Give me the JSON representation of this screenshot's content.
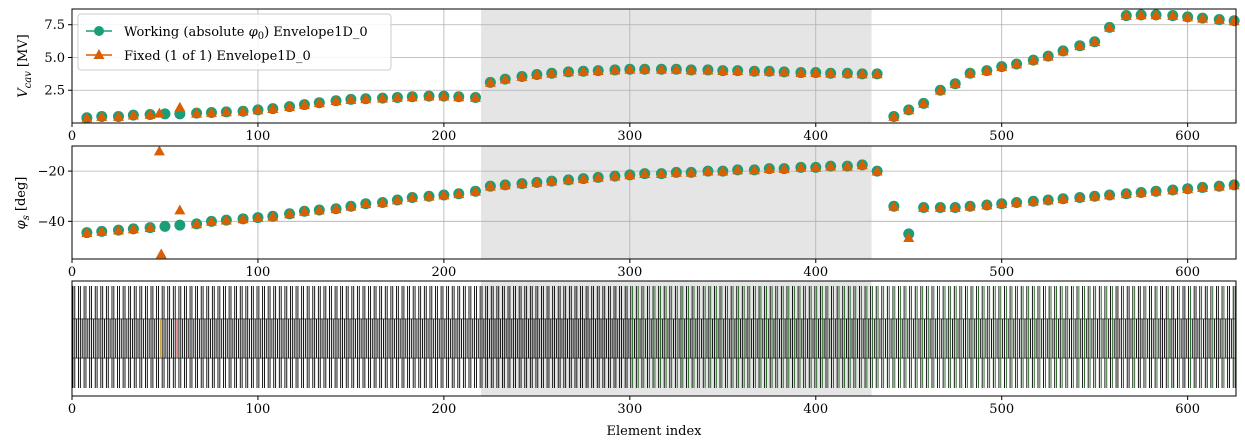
{
  "chart_data": [
    {
      "type": "scatter",
      "name": "voltage-panel",
      "ylabel_main": "V",
      "ylabel_sub": "cav",
      "ylabel_unit": "[MV]",
      "xlim": [
        0,
        626
      ],
      "ylim": [
        0,
        8.7
      ],
      "xticks": [
        0,
        100,
        200,
        300,
        400,
        500,
        600
      ],
      "yticks": [
        2.5,
        5.0,
        7.5
      ],
      "grid": true,
      "legend": {
        "placement": "top-left",
        "entries": [
          {
            "label_pre": "Working (absolute ",
            "label_sym": "φ",
            "label_sub": "0",
            "label_post": ") Envelope1D_0",
            "color": "#1b9e77",
            "marker": "circle"
          },
          {
            "label_pre": "Fixed (1 of 1) Envelope1D_0",
            "label_sym": "",
            "label_sub": "",
            "label_post": "",
            "color": "#d95f02",
            "marker": "triangle"
          }
        ]
      },
      "shaded_region": [
        220,
        430
      ],
      "series": [
        {
          "name": "Working (absolute φ0) Envelope1D_0",
          "color": "#1b9e77",
          "marker": "circle",
          "x": [
            8,
            16,
            25,
            33,
            42,
            50,
            58,
            67,
            75,
            83,
            92,
            100,
            108,
            117,
            125,
            133,
            142,
            150,
            158,
            167,
            175,
            183,
            192,
            200,
            208,
            217,
            225,
            233,
            242,
            250,
            258,
            267,
            275,
            283,
            292,
            300,
            308,
            317,
            325,
            333,
            342,
            350,
            358,
            367,
            375,
            383,
            392,
            400,
            408,
            417,
            425,
            433,
            442,
            450,
            458,
            467,
            475,
            483,
            492,
            500,
            508,
            517,
            525,
            533,
            542,
            550,
            558,
            567,
            575,
            583,
            592,
            600,
            608,
            617,
            625
          ],
          "y": [
            0.4,
            0.5,
            0.5,
            0.6,
            0.65,
            0.7,
            0.7,
            0.75,
            0.8,
            0.85,
            0.9,
            1.0,
            1.1,
            1.25,
            1.4,
            1.55,
            1.7,
            1.8,
            1.85,
            1.9,
            1.95,
            2.0,
            2.05,
            2.05,
            2.0,
            1.95,
            3.1,
            3.35,
            3.55,
            3.7,
            3.8,
            3.9,
            3.95,
            4.0,
            4.05,
            4.1,
            4.1,
            4.1,
            4.1,
            4.05,
            4.05,
            4.0,
            4.0,
            3.95,
            3.95,
            3.9,
            3.85,
            3.85,
            3.8,
            3.8,
            3.75,
            3.75,
            0.5,
            1.0,
            1.5,
            2.5,
            3.0,
            3.8,
            4.0,
            4.3,
            4.5,
            4.8,
            5.1,
            5.5,
            5.9,
            6.2,
            7.3,
            8.2,
            8.25,
            8.25,
            8.2,
            8.1,
            8.0,
            7.9,
            7.8
          ]
        },
        {
          "name": "Fixed (1 of 1) Envelope1D_0",
          "color": "#d95f02",
          "marker": "triangle",
          "x": [
            8,
            16,
            25,
            33,
            42,
            47,
            58,
            67,
            75,
            83,
            92,
            100,
            108,
            117,
            125,
            133,
            142,
            150,
            158,
            167,
            175,
            183,
            192,
            200,
            208,
            217,
            225,
            233,
            242,
            250,
            258,
            267,
            275,
            283,
            292,
            300,
            308,
            317,
            325,
            333,
            342,
            350,
            358,
            367,
            375,
            383,
            392,
            400,
            408,
            417,
            425,
            433,
            442,
            450,
            458,
            467,
            475,
            483,
            492,
            500,
            508,
            517,
            525,
            533,
            542,
            550,
            558,
            567,
            575,
            583,
            592,
            600,
            608,
            617,
            625
          ],
          "y": [
            0.4,
            0.5,
            0.5,
            0.6,
            0.65,
            0.75,
            1.2,
            0.75,
            0.8,
            0.85,
            0.9,
            1.0,
            1.1,
            1.25,
            1.4,
            1.55,
            1.7,
            1.8,
            1.85,
            1.9,
            1.95,
            2.0,
            2.05,
            2.05,
            2.0,
            1.95,
            3.1,
            3.35,
            3.55,
            3.7,
            3.8,
            3.9,
            3.95,
            4.0,
            4.05,
            4.1,
            4.1,
            4.1,
            4.1,
            4.05,
            4.05,
            4.0,
            4.0,
            3.95,
            3.95,
            3.9,
            3.85,
            3.85,
            3.8,
            3.8,
            3.75,
            3.75,
            0.5,
            1.0,
            1.5,
            2.5,
            3.0,
            3.8,
            4.0,
            4.3,
            4.5,
            4.8,
            5.1,
            5.5,
            5.9,
            6.2,
            7.3,
            8.2,
            8.25,
            8.25,
            8.2,
            8.1,
            8.0,
            7.9,
            7.8
          ]
        }
      ]
    },
    {
      "type": "scatter",
      "name": "phase-panel",
      "ylabel_main": "φ",
      "ylabel_sub": "s",
      "ylabel_unit": "[deg]",
      "xlim": [
        0,
        626
      ],
      "ylim": [
        -55,
        -10
      ],
      "xticks": [
        0,
        100,
        200,
        300,
        400,
        500,
        600
      ],
      "yticks": [
        -40,
        -20
      ],
      "ytick_labels": [
        "−40",
        "−20"
      ],
      "grid": true,
      "shaded_region": [
        220,
        430
      ],
      "series": [
        {
          "name": "Working (absolute φ0) Envelope1D_0",
          "color": "#1b9e77",
          "marker": "circle",
          "x": [
            8,
            16,
            25,
            33,
            42,
            50,
            58,
            67,
            75,
            83,
            92,
            100,
            108,
            117,
            125,
            133,
            142,
            150,
            158,
            167,
            175,
            183,
            192,
            200,
            208,
            217,
            225,
            233,
            242,
            250,
            258,
            267,
            275,
            283,
            292,
            300,
            308,
            317,
            325,
            333,
            342,
            350,
            358,
            367,
            375,
            383,
            392,
            400,
            408,
            417,
            425,
            433,
            442,
            450,
            458,
            467,
            475,
            483,
            492,
            500,
            508,
            517,
            525,
            533,
            542,
            550,
            558,
            567,
            575,
            583,
            592,
            600,
            608,
            617,
            625
          ],
          "y": [
            -44.5,
            -44,
            -43.5,
            -43,
            -42.5,
            -42,
            -41.5,
            -41,
            -40,
            -39.5,
            -39,
            -38.5,
            -38,
            -37,
            -36,
            -35.5,
            -35,
            -34,
            -33,
            -32.5,
            -31.5,
            -30.5,
            -30,
            -29.5,
            -29,
            -28,
            -26,
            -25.5,
            -25,
            -24.5,
            -24,
            -23.5,
            -23,
            -22.5,
            -22,
            -21.5,
            -21,
            -21,
            -20.5,
            -20.5,
            -20,
            -20,
            -19.5,
            -19.5,
            -19,
            -19,
            -18.5,
            -18.5,
            -18,
            -18,
            -17.5,
            -20,
            -34,
            -45,
            -34.5,
            -34.5,
            -34.5,
            -34,
            -33.5,
            -33,
            -32.5,
            -32,
            -31.5,
            -31,
            -30.5,
            -30,
            -29.5,
            -29,
            -28.5,
            -28,
            -27.5,
            -27,
            -26.5,
            -26,
            -25.5
          ]
        },
        {
          "name": "Fixed (1 of 1) Envelope1D_0",
          "color": "#d95f02",
          "marker": "triangle",
          "x": [
            8,
            16,
            25,
            33,
            42,
            47,
            48,
            58,
            67,
            75,
            83,
            92,
            100,
            108,
            117,
            125,
            133,
            142,
            150,
            158,
            167,
            175,
            183,
            192,
            200,
            208,
            217,
            225,
            233,
            242,
            250,
            258,
            267,
            275,
            283,
            292,
            300,
            308,
            317,
            325,
            333,
            342,
            350,
            358,
            367,
            375,
            383,
            392,
            400,
            408,
            417,
            425,
            433,
            442,
            450,
            458,
            467,
            475,
            483,
            492,
            500,
            508,
            517,
            525,
            533,
            542,
            550,
            558,
            567,
            575,
            583,
            592,
            600,
            608,
            617,
            625
          ],
          "y": [
            -44.5,
            -44,
            -43.5,
            -43,
            -42.5,
            -12,
            -53,
            -35.5,
            -41,
            -40,
            -39.5,
            -39,
            -38.5,
            -38,
            -37,
            -36,
            -35.5,
            -35,
            -34,
            -33,
            -32.5,
            -31.5,
            -30.5,
            -30,
            -29.5,
            -29,
            -28,
            -26,
            -25.5,
            -25,
            -24.5,
            -24,
            -23.5,
            -23,
            -22.5,
            -22,
            -21.5,
            -21,
            -21,
            -20.5,
            -20.5,
            -20,
            -20,
            -19.5,
            -19.5,
            -19,
            -19,
            -18.5,
            -18.5,
            -18,
            -18,
            -17.5,
            -20,
            -34,
            -46.5,
            -34.5,
            -34.5,
            -34.5,
            -34,
            -33.5,
            -33,
            -32.5,
            -32,
            -31.5,
            -31,
            -30.5,
            -30,
            -29.5,
            -29,
            -28.5,
            -28,
            -27.5,
            -27,
            -26.5,
            -26,
            -25.5
          ]
        }
      ]
    },
    {
      "type": "other",
      "name": "lattice-panel",
      "xlabel": "Element index",
      "xlim": [
        0,
        626
      ],
      "xticks": [
        0,
        100,
        200,
        300,
        400,
        500,
        600
      ],
      "shaded_region": [
        220,
        430
      ],
      "element_count": 626,
      "element_pitch": 1,
      "colors": {
        "default": "#000000",
        "accent_green": "#1a5c1a",
        "accent_orange": "#b8860b",
        "accent_red": "#cc0000"
      },
      "highlighted_elements": [
        {
          "index": 47,
          "color": "#b8860b"
        },
        {
          "index": 56,
          "color": "#cc0000"
        }
      ]
    }
  ]
}
